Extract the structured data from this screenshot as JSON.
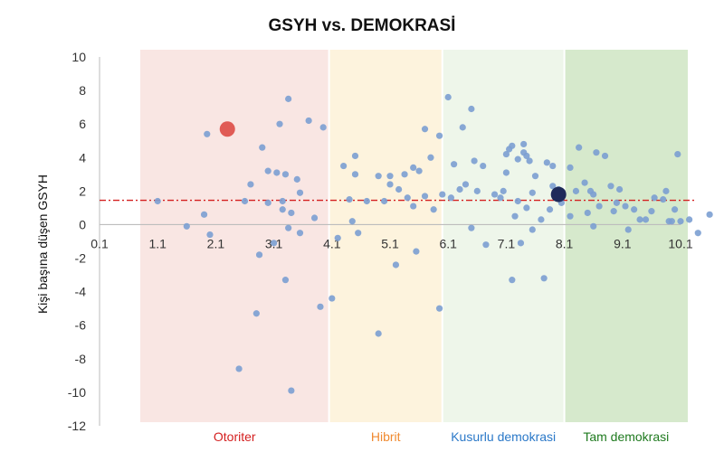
{
  "chart_data": {
    "type": "scatter",
    "title": "GSYH vs. DEMOKRASİ",
    "xlabel": "",
    "ylabel": "Kişi başına düşen GSYH",
    "xlim": [
      0.1,
      10.1
    ],
    "ylim": [
      -12,
      10
    ],
    "x_ticks": [
      "0.1",
      "1.1",
      "2.1",
      "3.1",
      "4.1",
      "5.1",
      "6.1",
      "7.1",
      "8.1",
      "9.1",
      "10.1"
    ],
    "y_ticks": [
      "10",
      "8",
      "6",
      "4",
      "2",
      "0",
      "-2",
      "-4",
      "-6",
      "-8",
      "-10",
      "-12"
    ],
    "grid": false,
    "regions": [
      {
        "label": "Otoriter",
        "x_range": [
          0.8,
          4.05
        ],
        "fill": "#f9e6e3",
        "label_color": "#d42020"
      },
      {
        "label": "Hibrit",
        "x_range": [
          4.05,
          6.0
        ],
        "fill": "#fdf3dd",
        "label_color": "#f08a30"
      },
      {
        "label": "Kusurlu demokrasi",
        "x_range": [
          6.0,
          8.1
        ],
        "fill": "#eef6ea",
        "label_color": "#2a78c8"
      },
      {
        "label": "Tam demokrasi",
        "x_range": [
          8.1,
          10.35
        ],
        "fill": "#d6e9cc",
        "label_color": "#1f7a1f"
      }
    ],
    "reference_line": {
      "y": 1.45,
      "style": "dash-dot",
      "color": "#d42020"
    },
    "highlighted_points": [
      {
        "x": 2.3,
        "y": 5.7,
        "color": "#e05b55"
      },
      {
        "x": 8.0,
        "y": 1.8,
        "color": "#1e2a5a"
      }
    ],
    "point_color": "#7b9fd1",
    "points": [
      [
        1.1,
        1.4
      ],
      [
        1.6,
        -0.1
      ],
      [
        1.9,
        0.6
      ],
      [
        1.95,
        5.4
      ],
      [
        2.0,
        -0.6
      ],
      [
        2.5,
        -8.6
      ],
      [
        2.6,
        1.4
      ],
      [
        2.7,
        2.4
      ],
      [
        2.8,
        -5.3
      ],
      [
        2.85,
        -1.8
      ],
      [
        2.9,
        4.6
      ],
      [
        3.0,
        1.3
      ],
      [
        3.0,
        3.2
      ],
      [
        3.1,
        -1.1
      ],
      [
        3.15,
        3.1
      ],
      [
        3.2,
        6.0
      ],
      [
        3.25,
        1.4
      ],
      [
        3.25,
        0.9
      ],
      [
        3.3,
        3.0
      ],
      [
        3.3,
        -3.3
      ],
      [
        3.35,
        7.5
      ],
      [
        3.35,
        -0.2
      ],
      [
        3.4,
        0.7
      ],
      [
        3.4,
        -9.9
      ],
      [
        3.5,
        2.7
      ],
      [
        3.55,
        -0.5
      ],
      [
        3.55,
        1.9
      ],
      [
        3.7,
        6.2
      ],
      [
        3.8,
        0.4
      ],
      [
        3.9,
        -4.9
      ],
      [
        3.95,
        5.8
      ],
      [
        4.1,
        -4.4
      ],
      [
        4.2,
        -0.8
      ],
      [
        4.3,
        3.5
      ],
      [
        4.4,
        1.5
      ],
      [
        4.45,
        0.2
      ],
      [
        4.5,
        4.1
      ],
      [
        4.5,
        3.0
      ],
      [
        4.55,
        -0.5
      ],
      [
        4.7,
        1.4
      ],
      [
        4.9,
        2.9
      ],
      [
        4.9,
        -6.5
      ],
      [
        5.0,
        1.4
      ],
      [
        5.1,
        2.4
      ],
      [
        5.1,
        2.9
      ],
      [
        5.2,
        -2.4
      ],
      [
        5.25,
        2.1
      ],
      [
        5.35,
        3.0
      ],
      [
        5.4,
        1.6
      ],
      [
        5.5,
        3.4
      ],
      [
        5.5,
        1.1
      ],
      [
        5.55,
        -1.6
      ],
      [
        5.6,
        3.2
      ],
      [
        5.7,
        1.7
      ],
      [
        5.7,
        5.7
      ],
      [
        5.8,
        4.0
      ],
      [
        5.85,
        0.9
      ],
      [
        5.95,
        5.3
      ],
      [
        5.95,
        -5.0
      ],
      [
        6.0,
        1.8
      ],
      [
        6.1,
        7.6
      ],
      [
        6.15,
        1.6
      ],
      [
        6.2,
        3.6
      ],
      [
        6.3,
        2.1
      ],
      [
        6.35,
        5.8
      ],
      [
        6.4,
        2.4
      ],
      [
        6.5,
        -0.2
      ],
      [
        6.5,
        6.9
      ],
      [
        6.55,
        3.8
      ],
      [
        6.6,
        2.0
      ],
      [
        6.7,
        3.5
      ],
      [
        6.75,
        -1.2
      ],
      [
        6.9,
        1.8
      ],
      [
        7.0,
        1.6
      ],
      [
        7.05,
        2.0
      ],
      [
        7.1,
        4.2
      ],
      [
        7.1,
        3.1
      ],
      [
        7.15,
        4.5
      ],
      [
        7.2,
        -3.3
      ],
      [
        7.2,
        4.7
      ],
      [
        7.25,
        0.5
      ],
      [
        7.3,
        3.9
      ],
      [
        7.3,
        1.4
      ],
      [
        7.35,
        -1.1
      ],
      [
        7.4,
        4.8
      ],
      [
        7.4,
        4.3
      ],
      [
        7.45,
        4.1
      ],
      [
        7.45,
        1.0
      ],
      [
        7.5,
        3.8
      ],
      [
        7.55,
        -0.3
      ],
      [
        7.55,
        1.9
      ],
      [
        7.6,
        2.9
      ],
      [
        7.7,
        0.3
      ],
      [
        7.75,
        -3.2
      ],
      [
        7.8,
        3.7
      ],
      [
        7.85,
        0.9
      ],
      [
        7.9,
        3.5
      ],
      [
        7.9,
        2.3
      ],
      [
        8.0,
        2.1
      ],
      [
        8.05,
        1.3
      ],
      [
        8.2,
        0.5
      ],
      [
        8.3,
        2.0
      ],
      [
        8.35,
        4.6
      ],
      [
        8.45,
        2.5
      ],
      [
        8.55,
        2.0
      ],
      [
        8.6,
        1.8
      ],
      [
        8.65,
        4.3
      ],
      [
        8.7,
        1.1
      ],
      [
        8.8,
        4.1
      ],
      [
        8.9,
        2.3
      ],
      [
        8.95,
        0.8
      ],
      [
        9.0,
        1.3
      ],
      [
        9.05,
        2.1
      ],
      [
        9.15,
        1.1
      ],
      [
        9.2,
        -0.3
      ],
      [
        9.3,
        0.9
      ],
      [
        9.4,
        0.3
      ],
      [
        9.5,
        0.3
      ],
      [
        9.6,
        0.8
      ],
      [
        9.65,
        1.6
      ],
      [
        9.8,
        1.5
      ],
      [
        9.85,
        2.0
      ],
      [
        9.9,
        0.2
      ],
      [
        9.95,
        0.2
      ],
      [
        10.0,
        0.9
      ],
      [
        10.05,
        4.2
      ],
      [
        10.1,
        0.2
      ],
      [
        10.25,
        0.3
      ],
      [
        10.4,
        -0.5
      ],
      [
        10.6,
        0.6
      ],
      [
        8.2,
        3.4
      ],
      [
        8.5,
        0.7
      ],
      [
        8.6,
        -0.1
      ]
    ]
  }
}
